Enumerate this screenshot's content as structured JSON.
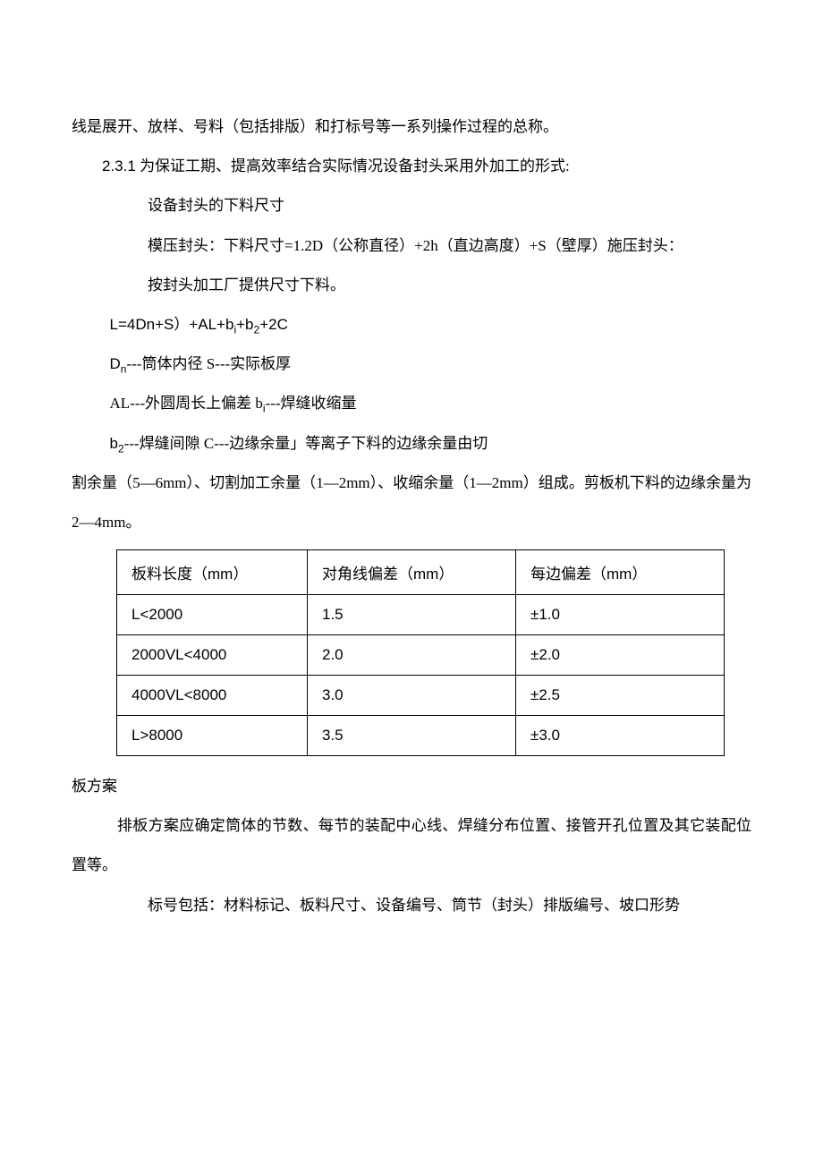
{
  "p1": "线是展开、放样、号料（包括排版）和打标号等一系列操作过程的总称。",
  "p2_num": "2.3.1",
  "p2_text": " 为保证工期、提高效率结合实际情况设备封头采用外加工的形式:",
  "p3": "设备封头的下料尺寸",
  "p4": "模压封头：下料尺寸=1.2D（公称直径）+2h（直边高度）+S（壁厚）施压封头：",
  "p5": "按封头加工厂提供尺寸下料。",
  "p6_pre": "L=4Dn+S）+AL+b",
  "p6_sub1": "i",
  "p6_mid": "+b",
  "p6_sub2": "2",
  "p6_post": "+2C",
  "p7_pre": "D",
  "p7_sub": "n",
  "p7_post": "---筒体内径 S---实际板厚",
  "p8_pre": "AL---外圆周长上偏差 b",
  "p8_sub": "i",
  "p8_post": "---焊缝收缩量",
  "p9_pre": "b",
  "p9_sub": "2",
  "p9_post": "---焊缝间隙 C---边缘余量」等离子下料的边缘余量由切",
  "p10": "割余量（5—6mm）、切割加工余量（1—2mm）、收缩余量（1—2mm）组成。剪板机下料的边缘余量为 2—4mm。",
  "table": {
    "header": [
      "板料长度（mm）",
      "对角线偏差（mm）",
      "每边偏差（mm）"
    ],
    "rows": [
      [
        "L<2000",
        "1.5",
        "±1.0"
      ],
      [
        "2000VL<4000",
        "2.0",
        "±2.0"
      ],
      [
        "4000VL<8000",
        "3.0",
        "±2.5"
      ],
      [
        "L>8000",
        "3.5",
        "±3.0"
      ]
    ]
  },
  "p11": "板方案",
  "p12": "排板方案应确定筒体的节数、每节的装配中心线、焊缝分布位置、接管开孔位置及其它装配位置等。",
  "p13": "标号包括：材料标记、板料尺寸、设备编号、筒节（封头）排版编号、坡口形势"
}
